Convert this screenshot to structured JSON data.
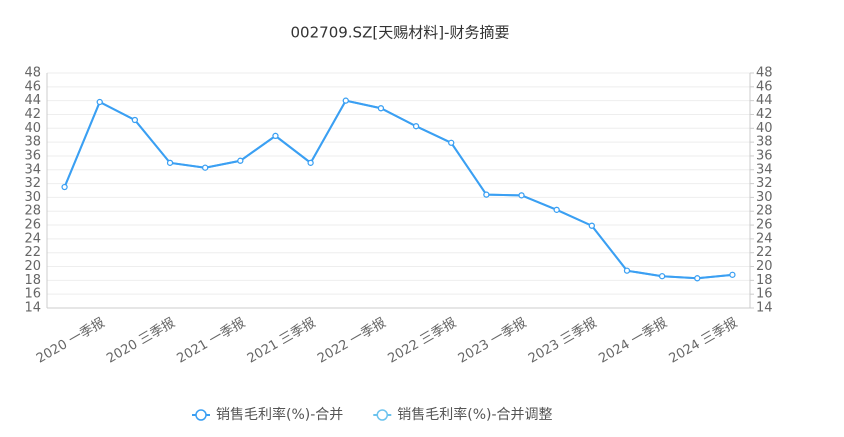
{
  "chart_data": {
    "type": "line",
    "title": "002709.SZ[天赐材料]-财务摘要",
    "categories": [
      null,
      "2020 一季报",
      null,
      "2020 三季报",
      null,
      "2021 一季报",
      null,
      "2021 三季报",
      null,
      "2022 一季报",
      null,
      "2022 三季报",
      null,
      "2023 一季报",
      null,
      "2023 三季报",
      null,
      "2024 一季报",
      null,
      "2024 三季报"
    ],
    "series": [
      {
        "name": "销售毛利率(%)-合并",
        "color": "#3b9ff3",
        "values": [
          31.5,
          43.8,
          41.2,
          35.0,
          34.3,
          35.3,
          38.9,
          35.0,
          44.0,
          42.9,
          40.3,
          37.9,
          30.4,
          30.3,
          28.2,
          25.9,
          19.4,
          18.6,
          18.3,
          18.8
        ]
      },
      {
        "name": "销售毛利率(%)-合并调整",
        "color": "#6cc3ee",
        "axis": "y2",
        "values": [
          31.5,
          43.8,
          41.2,
          35.0,
          34.3,
          35.3,
          38.9,
          35.0,
          44.0,
          42.9,
          40.3,
          37.9,
          30.4,
          30.3,
          28.2,
          25.9,
          19.4,
          18.6,
          18.3,
          18.8
        ]
      }
    ],
    "ylim": [
      14,
      48
    ],
    "yticks": [
      14,
      16,
      18,
      20,
      22,
      24,
      26,
      28,
      30,
      32,
      34,
      36,
      38,
      40,
      42,
      44,
      46,
      48
    ],
    "y2lim": [
      14,
      48
    ],
    "y2ticks": [
      14,
      16,
      18,
      20,
      22,
      24,
      26,
      28,
      30,
      32,
      34,
      36,
      38,
      40,
      42,
      44,
      46,
      48
    ],
    "grid": true
  }
}
